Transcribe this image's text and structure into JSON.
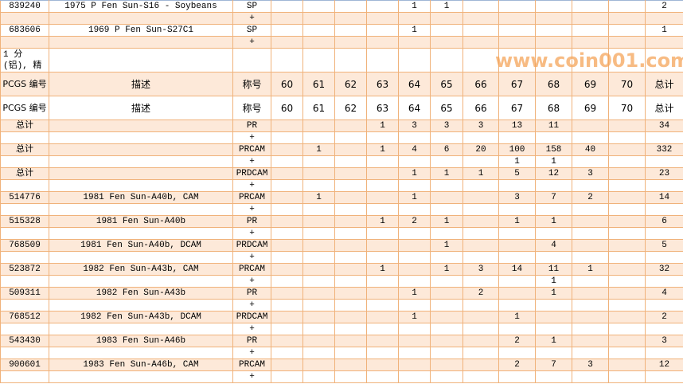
{
  "colors": {
    "border": "#f0b27a",
    "row_alt": "#fde9d9",
    "watermark": "#f5a55a"
  },
  "columns": [
    "PCGS 编号",
    "描述",
    "称号",
    "60",
    "61",
    "62",
    "63",
    "64",
    "65",
    "66",
    "67",
    "68",
    "69",
    "70",
    "总计"
  ],
  "rows": [
    {
      "style": "first",
      "cells": [
        "839240",
        "1975 P Fen Sun-S16 - Soybeans",
        "SP",
        "",
        "",
        "",
        "",
        "1",
        "1",
        "",
        "",
        "",
        "",
        "",
        "2"
      ]
    },
    {
      "style": "peach",
      "cells": [
        "",
        "",
        "+",
        "",
        "",
        "",
        "",
        "",
        "",
        "",
        "",
        "",
        "",
        "",
        ""
      ]
    },
    {
      "style": "",
      "cells": [
        "683606",
        "1969 P Fen Sun-S27C1",
        "SP",
        "",
        "",
        "",
        "",
        "1",
        "",
        "",
        "",
        "",
        "",
        "",
        "1"
      ]
    },
    {
      "style": "peach",
      "cells": [
        "",
        "",
        "+",
        "",
        "",
        "",
        "",
        "",
        "",
        "",
        "",
        "",
        "",
        "",
        ""
      ]
    },
    {
      "style": "tall",
      "cells": [
        "1 分 (铝), 精",
        "",
        "",
        "",
        "",
        "",
        "",
        "",
        "",
        "",
        "",
        "",
        "",
        "",
        ""
      ]
    },
    {
      "style": "tall hdr peach",
      "cells": [
        "PCGS 编号",
        "描述",
        "称号",
        "60",
        "61",
        "62",
        "63",
        "64",
        "65",
        "66",
        "67",
        "68",
        "69",
        "70",
        "总计"
      ]
    },
    {
      "style": "tall hdr",
      "cells": [
        "PCGS 编号",
        "描述",
        "称号",
        "60",
        "61",
        "62",
        "63",
        "64",
        "65",
        "66",
        "67",
        "68",
        "69",
        "70",
        "总计"
      ]
    },
    {
      "style": "peach",
      "cells": [
        "总计",
        "",
        "PR",
        "",
        "",
        "",
        "1",
        "3",
        "3",
        "3",
        "13",
        "11",
        "",
        "",
        "34"
      ]
    },
    {
      "style": "",
      "cells": [
        "",
        "",
        "+",
        "",
        "",
        "",
        "",
        "",
        "",
        "",
        "",
        "",
        "",
        "",
        ""
      ]
    },
    {
      "style": "peach",
      "cells": [
        "总计",
        "",
        "PRCAM",
        "",
        "1",
        "",
        "1",
        "4",
        "6",
        "20",
        "100",
        "158",
        "40",
        "",
        "332"
      ]
    },
    {
      "style": "",
      "cells": [
        "",
        "",
        "+",
        "",
        "",
        "",
        "",
        "",
        "",
        "",
        "1",
        "1",
        "",
        "",
        ""
      ]
    },
    {
      "style": "peach",
      "cells": [
        "总计",
        "",
        "PRDCAM",
        "",
        "",
        "",
        "",
        "1",
        "1",
        "1",
        "5",
        "12",
        "3",
        "",
        "23"
      ]
    },
    {
      "style": "",
      "cells": [
        "",
        "",
        "+",
        "",
        "",
        "",
        "",
        "",
        "",
        "",
        "",
        "",
        "",
        "",
        ""
      ]
    },
    {
      "style": "peach",
      "cells": [
        "514776",
        "1981 Fen Sun-A40b, CAM",
        "PRCAM",
        "",
        "1",
        "",
        "",
        "1",
        "",
        "",
        "3",
        "7",
        "2",
        "",
        "14"
      ]
    },
    {
      "style": "",
      "cells": [
        "",
        "",
        "+",
        "",
        "",
        "",
        "",
        "",
        "",
        "",
        "",
        "",
        "",
        "",
        ""
      ]
    },
    {
      "style": "peach",
      "cells": [
        "515328",
        "1981 Fen Sun-A40b",
        "PR",
        "",
        "",
        "",
        "1",
        "2",
        "1",
        "",
        "1",
        "1",
        "",
        "",
        "6"
      ]
    },
    {
      "style": "",
      "cells": [
        "",
        "",
        "+",
        "",
        "",
        "",
        "",
        "",
        "",
        "",
        "",
        "",
        "",
        "",
        ""
      ]
    },
    {
      "style": "peach",
      "cells": [
        "768509",
        "1981 Fen Sun-A40b, DCAM",
        "PRDCAM",
        "",
        "",
        "",
        "",
        "",
        "1",
        "",
        "",
        "4",
        "",
        "",
        "5"
      ]
    },
    {
      "style": "",
      "cells": [
        "",
        "",
        "+",
        "",
        "",
        "",
        "",
        "",
        "",
        "",
        "",
        "",
        "",
        "",
        ""
      ]
    },
    {
      "style": "peach",
      "cells": [
        "523872",
        "1982 Fen Sun-A43b, CAM",
        "PRCAM",
        "",
        "",
        "",
        "1",
        "",
        "1",
        "3",
        "14",
        "11",
        "1",
        "",
        "32"
      ]
    },
    {
      "style": "",
      "cells": [
        "",
        "",
        "+",
        "",
        "",
        "",
        "",
        "",
        "",
        "",
        "",
        "1",
        "",
        "",
        ""
      ]
    },
    {
      "style": "peach",
      "cells": [
        "509311",
        "1982 Fen Sun-A43b",
        "PR",
        "",
        "",
        "",
        "",
        "1",
        "",
        "2",
        "",
        "1",
        "",
        "",
        "4"
      ]
    },
    {
      "style": "",
      "cells": [
        "",
        "",
        "+",
        "",
        "",
        "",
        "",
        "",
        "",
        "",
        "",
        "",
        "",
        "",
        ""
      ]
    },
    {
      "style": "peach",
      "cells": [
        "768512",
        "1982 Fen Sun-A43b, DCAM",
        "PRDCAM",
        "",
        "",
        "",
        "",
        "1",
        "",
        "",
        "1",
        "",
        "",
        "",
        "2"
      ]
    },
    {
      "style": "",
      "cells": [
        "",
        "",
        "+",
        "",
        "",
        "",
        "",
        "",
        "",
        "",
        "",
        "",
        "",
        "",
        ""
      ]
    },
    {
      "style": "peach",
      "cells": [
        "543430",
        "1983 Fen Sun-A46b",
        "PR",
        "",
        "",
        "",
        "",
        "",
        "",
        "",
        "2",
        "1",
        "",
        "",
        "3"
      ]
    },
    {
      "style": "",
      "cells": [
        "",
        "",
        "+",
        "",
        "",
        "",
        "",
        "",
        "",
        "",
        "",
        "",
        "",
        "",
        ""
      ]
    },
    {
      "style": "peach",
      "cells": [
        "900601",
        "1983 Fen Sun-A46b, CAM",
        "PRCAM",
        "",
        "",
        "",
        "",
        "",
        "",
        "",
        "2",
        "7",
        "3",
        "",
        "12"
      ]
    },
    {
      "style": "",
      "cells": [
        "",
        "",
        "+",
        "",
        "",
        "",
        "",
        "",
        "",
        "",
        "",
        "",
        "",
        "",
        ""
      ]
    }
  ],
  "watermark": "www.coin001.com"
}
